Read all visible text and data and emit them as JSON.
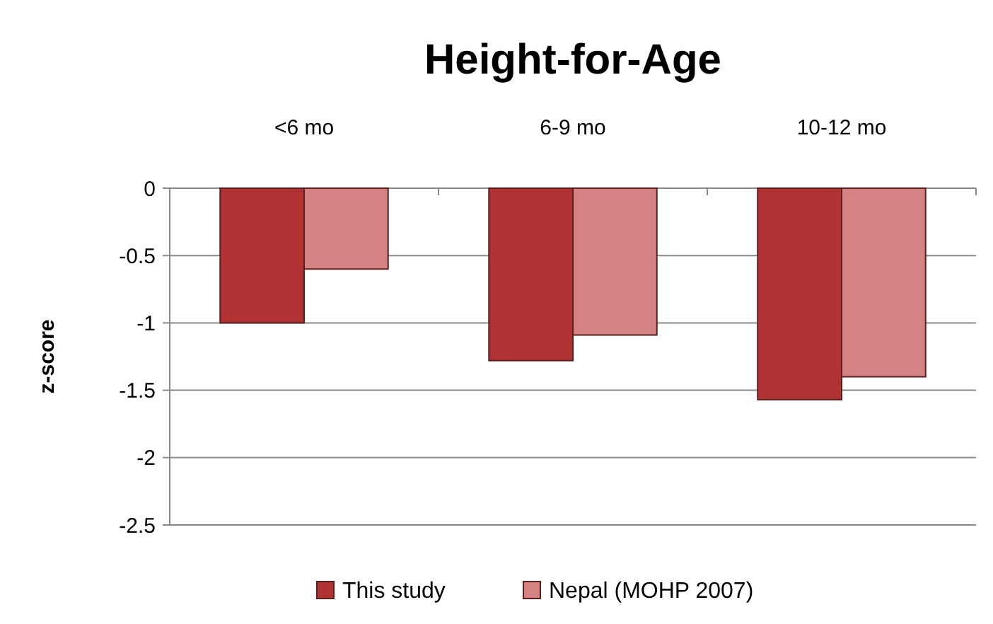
{
  "chart_data": {
    "type": "bar",
    "title": "Height-for-Age",
    "ylabel": "z-score",
    "categories": [
      "<6 mo",
      "6-9 mo",
      "10-12 mo"
    ],
    "series": [
      {
        "name": "This study",
        "color": "#b03232",
        "values": [
          -1.0,
          -1.28,
          -1.57
        ]
      },
      {
        "name": "Nepal (MOHP 2007)",
        "color": "#d48282",
        "values": [
          -0.6,
          -1.09,
          -1.4
        ]
      }
    ],
    "ylim": [
      -2.5,
      0
    ],
    "yticks": [
      0,
      -0.5,
      -1,
      -1.5,
      -2,
      -2.5
    ],
    "grid": "y",
    "legend": "bottom"
  }
}
